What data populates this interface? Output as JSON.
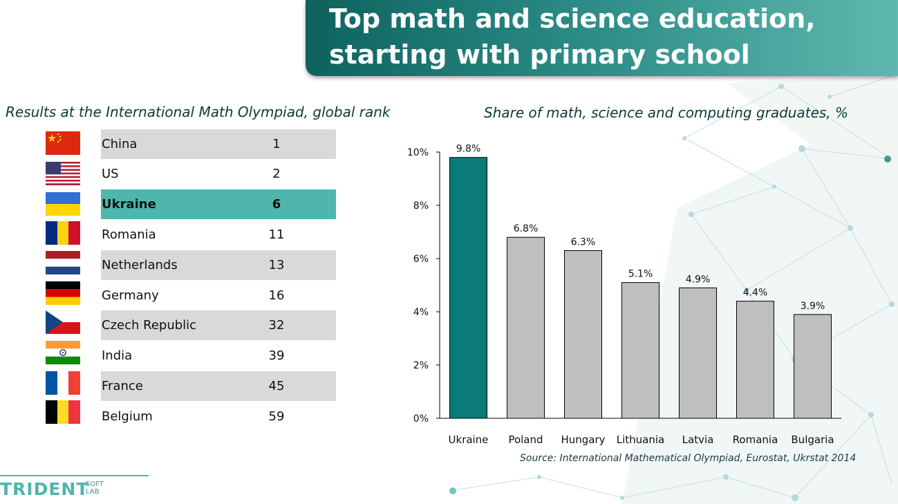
{
  "slide": {
    "title_line1": "Top math and science education,",
    "title_line2": "starting with primary school"
  },
  "olympiad": {
    "subtitle": "Results at the International Math Olympiad, global rank",
    "rows": [
      {
        "country": "China",
        "rank": "1",
        "flag": "china-flag-icon"
      },
      {
        "country": "US",
        "rank": "2",
        "flag": "us-flag-icon"
      },
      {
        "country": "Ukraine",
        "rank": "6",
        "flag": "ukraine-flag-icon",
        "highlight": true
      },
      {
        "country": "Romania",
        "rank": "11",
        "flag": "romania-flag-icon"
      },
      {
        "country": "Netherlands",
        "rank": "13",
        "flag": "netherlands-flag-icon"
      },
      {
        "country": "Germany",
        "rank": "16",
        "flag": "germany-flag-icon"
      },
      {
        "country": "Czech Republic",
        "rank": "32",
        "flag": "czech-flag-icon"
      },
      {
        "country": "India",
        "rank": "39",
        "flag": "india-flag-icon"
      },
      {
        "country": "France",
        "rank": "45",
        "flag": "france-flag-icon"
      },
      {
        "country": "Belgium",
        "rank": "59",
        "flag": "belgium-flag-icon"
      }
    ],
    "highlight_color": "#4eb6ac",
    "shade_color": "#d9d9d9"
  },
  "chart_data": {
    "type": "bar",
    "title": "Share of math, science and computing graduates, %",
    "categories": [
      "Ukraine",
      "Poland",
      "Hungary",
      "Lithuania",
      "Latvia",
      "Romania",
      "Bulgaria"
    ],
    "values": [
      9.8,
      6.8,
      6.3,
      5.1,
      4.9,
      4.4,
      3.9
    ],
    "data_labels": [
      "9.8%",
      "6.8%",
      "6.3%",
      "5.1%",
      "4.9%",
      "4.4%",
      "3.9%"
    ],
    "ylim": [
      0,
      10
    ],
    "yticks": [
      0,
      2,
      4,
      6,
      8,
      10
    ],
    "ytick_labels": [
      "0%",
      "2%",
      "4%",
      "6%",
      "8%",
      "10%"
    ],
    "xlabel": "",
    "ylabel": "",
    "grid": false,
    "highlight_color": "#0a7b78",
    "bar_color": "#bfbfbf",
    "source": "Source: International Mathematical Olympiad, Eurostat, Ukrstat 2014"
  },
  "logo": {
    "main": "TRIDENT",
    "sub1": "SOFT",
    "sub2": "LAB"
  },
  "colors": {
    "accent": "#4eb6ac",
    "banner_dark": "#0e625e"
  }
}
